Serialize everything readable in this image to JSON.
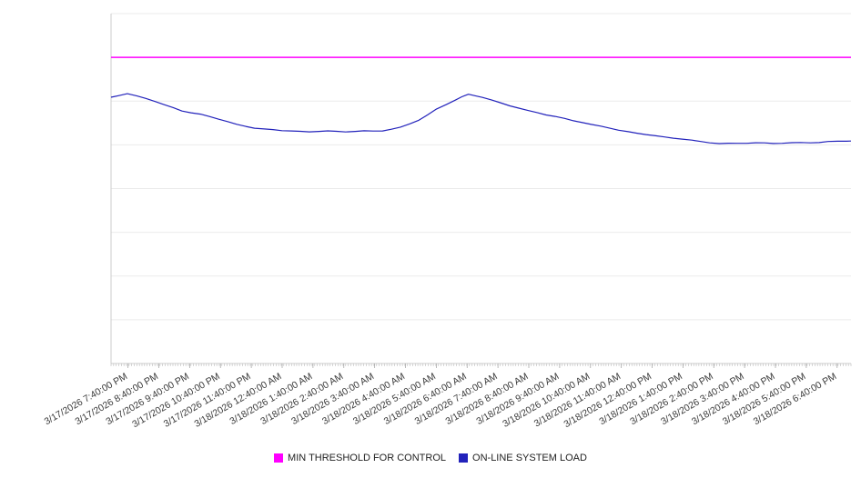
{
  "chart_data": {
    "type": "line",
    "title": "",
    "xlabel": "",
    "ylabel": "",
    "ylim": [
      0,
      100
    ],
    "y_gridline_step": 12.5,
    "y_tick_labels": [],
    "grid": "horizontal",
    "legend_position": "bottom-center",
    "minor_ticks_count": 288,
    "x_tick_labels": [
      "3/17/2026 7:40:00 PM",
      "3/17/2026 8:40:00 PM",
      "3/17/2026 9:40:00 PM",
      "3/17/2026 10:40:00 PM",
      "3/17/2026 11:40:00 PM",
      "3/18/2026 12:40:00 AM",
      "3/18/2026 1:40:00 AM",
      "3/18/2026 2:40:00 AM",
      "3/18/2026 3:40:00 AM",
      "3/18/2026 4:40:00 AM",
      "3/18/2026 5:40:00 AM",
      "3/18/2026 6:40:00 AM",
      "3/18/2026 7:40:00 AM",
      "3/18/2026 8:40:00 AM",
      "3/18/2026 9:40:00 AM",
      "3/18/2026 10:40:00 AM",
      "3/18/2026 11:40:00 AM",
      "3/18/2026 12:40:00 PM",
      "3/18/2026 1:40:00 PM",
      "3/18/2026 2:40:00 PM",
      "3/18/2026 3:40:00 PM",
      "3/18/2026 4:40:00 PM",
      "3/18/2026 5:40:00 PM",
      "3/18/2026 6:40:00 PM"
    ],
    "series": [
      {
        "name": "MIN THRESHOLD FOR CONTROL",
        "type": "horizontal-threshold",
        "color": "#ff00ff",
        "value": 87.5
      },
      {
        "name": "ON-LINE SYSTEM LOAD",
        "type": "line",
        "color": "#2222bb",
        "points": [
          [
            0.0,
            76.1
          ],
          [
            0.01,
            76.6
          ],
          [
            0.022,
            77.1
          ],
          [
            0.035,
            76.4
          ],
          [
            0.047,
            75.8
          ],
          [
            0.06,
            74.9
          ],
          [
            0.071,
            74.0
          ],
          [
            0.084,
            73.1
          ],
          [
            0.096,
            72.2
          ],
          [
            0.108,
            71.7
          ],
          [
            0.121,
            71.2
          ],
          [
            0.133,
            70.6
          ],
          [
            0.145,
            69.9
          ],
          [
            0.158,
            69.1
          ],
          [
            0.17,
            68.3
          ],
          [
            0.182,
            67.8
          ],
          [
            0.194,
            67.3
          ],
          [
            0.207,
            67.0
          ],
          [
            0.219,
            66.8
          ],
          [
            0.231,
            66.6
          ],
          [
            0.244,
            66.5
          ],
          [
            0.256,
            66.3
          ],
          [
            0.268,
            66.2
          ],
          [
            0.281,
            66.4
          ],
          [
            0.293,
            66.5
          ],
          [
            0.305,
            66.3
          ],
          [
            0.317,
            66.2
          ],
          [
            0.33,
            66.4
          ],
          [
            0.342,
            66.5
          ],
          [
            0.354,
            66.4
          ],
          [
            0.367,
            66.5
          ],
          [
            0.379,
            67.0
          ],
          [
            0.391,
            67.5
          ],
          [
            0.404,
            68.5
          ],
          [
            0.416,
            69.6
          ],
          [
            0.428,
            71.1
          ],
          [
            0.44,
            72.7
          ],
          [
            0.453,
            74.0
          ],
          [
            0.465,
            75.3
          ],
          [
            0.474,
            76.2
          ],
          [
            0.483,
            76.9
          ],
          [
            0.493,
            76.5
          ],
          [
            0.502,
            76.1
          ],
          [
            0.514,
            75.3
          ],
          [
            0.526,
            74.5
          ],
          [
            0.539,
            73.7
          ],
          [
            0.551,
            73.0
          ],
          [
            0.563,
            72.3
          ],
          [
            0.576,
            71.7
          ],
          [
            0.588,
            71.1
          ],
          [
            0.6,
            70.6
          ],
          [
            0.613,
            70.0
          ],
          [
            0.625,
            69.4
          ],
          [
            0.637,
            68.9
          ],
          [
            0.649,
            68.3
          ],
          [
            0.662,
            67.8
          ],
          [
            0.674,
            67.3
          ],
          [
            0.686,
            66.7
          ],
          [
            0.699,
            66.2
          ],
          [
            0.711,
            65.8
          ],
          [
            0.723,
            65.5
          ],
          [
            0.736,
            65.1
          ],
          [
            0.748,
            64.7
          ],
          [
            0.76,
            64.4
          ],
          [
            0.772,
            64.2
          ],
          [
            0.785,
            63.8
          ],
          [
            0.797,
            63.4
          ],
          [
            0.809,
            63.1
          ],
          [
            0.822,
            62.9
          ],
          [
            0.834,
            62.9
          ],
          [
            0.846,
            62.9
          ],
          [
            0.859,
            63.0
          ],
          [
            0.871,
            63.1
          ],
          [
            0.883,
            63.0
          ],
          [
            0.895,
            62.9
          ],
          [
            0.907,
            63.0
          ],
          [
            0.92,
            63.1
          ],
          [
            0.932,
            63.1
          ],
          [
            0.945,
            63.1
          ],
          [
            0.957,
            63.2
          ],
          [
            0.969,
            63.4
          ],
          [
            0.982,
            63.5
          ],
          [
            0.994,
            63.6
          ],
          [
            1.0,
            63.6
          ]
        ]
      }
    ],
    "legend": {
      "items": [
        {
          "label": "MIN THRESHOLD FOR CONTROL",
          "color": "#ff00ff"
        },
        {
          "label": "ON-LINE SYSTEM LOAD",
          "color": "#2222bb"
        }
      ]
    }
  }
}
